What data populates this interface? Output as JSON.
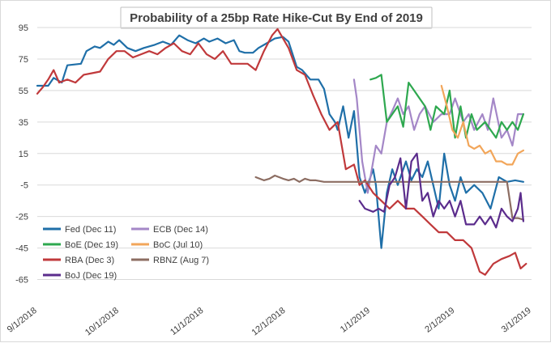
{
  "chart_data": {
    "type": "line",
    "title": "Probability  of a 25bp Rate Hike-Cut  By End of 2019",
    "xlabel": "",
    "ylabel": "",
    "ylim": [
      -75,
      95
    ],
    "yticks": [
      95,
      75,
      55,
      35,
      15,
      -5,
      -25,
      -45,
      -65
    ],
    "x_ticks": [
      "9/1/2018",
      "10/1/2018",
      "11/1/2018",
      "12/1/2018",
      "1/1/2019",
      "2/1/2019",
      "3/1/2019"
    ],
    "grid": "horizontal",
    "legend_position": "bottom-left",
    "x_start": "2018-09-01",
    "series": [
      {
        "name": "Fed (Dec 11)",
        "color": "#1f6fa8",
        "points": [
          [
            "2018-09-01",
            58
          ],
          [
            "2018-09-05",
            58
          ],
          [
            "2018-09-07",
            63
          ],
          [
            "2018-09-10",
            60
          ],
          [
            "2018-09-12",
            71
          ],
          [
            "2018-09-17",
            72
          ],
          [
            "2018-09-19",
            80
          ],
          [
            "2018-09-22",
            83
          ],
          [
            "2018-09-24",
            82
          ],
          [
            "2018-09-27",
            86
          ],
          [
            "2018-09-29",
            84
          ],
          [
            "2018-10-01",
            87
          ],
          [
            "2018-10-04",
            82
          ],
          [
            "2018-10-07",
            80
          ],
          [
            "2018-10-10",
            82
          ],
          [
            "2018-10-14",
            84
          ],
          [
            "2018-10-17",
            86
          ],
          [
            "2018-10-20",
            84
          ],
          [
            "2018-10-23",
            90
          ],
          [
            "2018-10-26",
            87
          ],
          [
            "2018-10-29",
            85
          ],
          [
            "2018-11-01",
            88
          ],
          [
            "2018-11-03",
            86
          ],
          [
            "2018-11-06",
            88
          ],
          [
            "2018-11-09",
            85
          ],
          [
            "2018-11-12",
            87
          ],
          [
            "2018-11-14",
            80
          ],
          [
            "2018-11-16",
            79
          ],
          [
            "2018-11-19",
            79
          ],
          [
            "2018-11-21",
            82
          ],
          [
            "2018-11-24",
            85
          ],
          [
            "2018-11-27",
            88
          ],
          [
            "2018-11-30",
            89
          ],
          [
            "2018-12-02",
            86
          ],
          [
            "2018-12-05",
            70
          ],
          [
            "2018-12-07",
            68
          ],
          [
            "2018-12-10",
            62
          ],
          [
            "2018-12-13",
            62
          ],
          [
            "2018-12-15",
            56
          ],
          [
            "2018-12-17",
            40
          ],
          [
            "2018-12-19",
            35
          ],
          [
            "2018-12-20",
            30
          ],
          [
            "2018-12-22",
            45
          ],
          [
            "2018-12-24",
            25
          ],
          [
            "2018-12-26",
            42
          ],
          [
            "2018-12-28",
            0
          ],
          [
            "2018-12-30",
            -10
          ],
          [
            "2019-01-02",
            5
          ],
          [
            "2019-01-03",
            -5
          ],
          [
            "2019-01-05",
            -45
          ],
          [
            "2019-01-07",
            -10
          ],
          [
            "2019-01-09",
            5
          ],
          [
            "2019-01-11",
            -5
          ],
          [
            "2019-01-14",
            10
          ],
          [
            "2019-01-16",
            -2
          ],
          [
            "2019-01-18",
            5
          ],
          [
            "2019-01-20",
            0
          ],
          [
            "2019-01-22",
            10
          ],
          [
            "2019-01-24",
            -5
          ],
          [
            "2019-01-26",
            -20
          ],
          [
            "2019-01-28",
            15
          ],
          [
            "2019-01-30",
            -5
          ],
          [
            "2019-02-01",
            -15
          ],
          [
            "2019-02-03",
            0
          ],
          [
            "2019-02-05",
            -10
          ],
          [
            "2019-02-08",
            -5
          ],
          [
            "2019-02-11",
            -10
          ],
          [
            "2019-02-14",
            -20
          ],
          [
            "2019-02-17",
            0
          ],
          [
            "2019-02-20",
            -3
          ],
          [
            "2019-02-23",
            -2
          ],
          [
            "2019-02-26",
            -3
          ]
        ]
      },
      {
        "name": "ECB (Dec 14)",
        "color": "#a487c7",
        "points": [
          [
            "2018-12-26",
            62
          ],
          [
            "2018-12-27",
            50
          ],
          [
            "2018-12-29",
            10
          ],
          [
            "2018-12-31",
            -10
          ],
          [
            "2019-01-03",
            20
          ],
          [
            "2019-01-05",
            15
          ],
          [
            "2019-01-07",
            35
          ],
          [
            "2019-01-09",
            42
          ],
          [
            "2019-01-11",
            50
          ],
          [
            "2019-01-13",
            40
          ],
          [
            "2019-01-15",
            45
          ],
          [
            "2019-01-17",
            30
          ],
          [
            "2019-01-19",
            40
          ],
          [
            "2019-01-21",
            45
          ],
          [
            "2019-01-24",
            35
          ],
          [
            "2019-01-27",
            40
          ],
          [
            "2019-01-30",
            40
          ],
          [
            "2019-02-01",
            50
          ],
          [
            "2019-02-04",
            35
          ],
          [
            "2019-02-06",
            40
          ],
          [
            "2019-02-08",
            30
          ],
          [
            "2019-02-11",
            40
          ],
          [
            "2019-02-13",
            30
          ],
          [
            "2019-02-15",
            50
          ],
          [
            "2019-02-18",
            25
          ],
          [
            "2019-02-20",
            30
          ],
          [
            "2019-02-22",
            20
          ],
          [
            "2019-02-24",
            40
          ],
          [
            "2019-02-26",
            40
          ]
        ]
      },
      {
        "name": "BoE (Dec 19)",
        "color": "#2ea84f",
        "points": [
          [
            "2019-01-01",
            62
          ],
          [
            "2019-01-03",
            63
          ],
          [
            "2019-01-05",
            65
          ],
          [
            "2019-01-07",
            35
          ],
          [
            "2019-01-09",
            40
          ],
          [
            "2019-01-11",
            45
          ],
          [
            "2019-01-13",
            32
          ],
          [
            "2019-01-15",
            60
          ],
          [
            "2019-01-17",
            55
          ],
          [
            "2019-01-19",
            50
          ],
          [
            "2019-01-21",
            45
          ],
          [
            "2019-01-23",
            30
          ],
          [
            "2019-01-25",
            45
          ],
          [
            "2019-01-28",
            40
          ],
          [
            "2019-01-30",
            55
          ],
          [
            "2019-02-01",
            25
          ],
          [
            "2019-02-03",
            45
          ],
          [
            "2019-02-05",
            25
          ],
          [
            "2019-02-07",
            40
          ],
          [
            "2019-02-09",
            30
          ],
          [
            "2019-02-12",
            35
          ],
          [
            "2019-02-14",
            30
          ],
          [
            "2019-02-16",
            25
          ],
          [
            "2019-02-18",
            35
          ],
          [
            "2019-02-20",
            30
          ],
          [
            "2019-02-22",
            35
          ],
          [
            "2019-02-24",
            30
          ],
          [
            "2019-02-26",
            40
          ]
        ]
      },
      {
        "name": "BoC (Jul 10)",
        "color": "#f2a65a",
        "points": [
          [
            "2019-01-27",
            58
          ],
          [
            "2019-01-29",
            45
          ],
          [
            "2019-01-31",
            30
          ],
          [
            "2019-02-02",
            25
          ],
          [
            "2019-02-04",
            35
          ],
          [
            "2019-02-06",
            20
          ],
          [
            "2019-02-08",
            18
          ],
          [
            "2019-02-10",
            20
          ],
          [
            "2019-02-12",
            15
          ],
          [
            "2019-02-14",
            17
          ],
          [
            "2019-02-16",
            10
          ],
          [
            "2019-02-18",
            10
          ],
          [
            "2019-02-20",
            8
          ],
          [
            "2019-02-22",
            8
          ],
          [
            "2019-02-24",
            15
          ],
          [
            "2019-02-26",
            17
          ]
        ]
      },
      {
        "name": "RBA (Dec 3)",
        "color": "#c0393b",
        "points": [
          [
            "2018-09-01",
            53
          ],
          [
            "2018-09-03",
            57
          ],
          [
            "2018-09-05",
            62
          ],
          [
            "2018-09-07",
            68
          ],
          [
            "2018-09-09",
            60
          ],
          [
            "2018-09-12",
            62
          ],
          [
            "2018-09-15",
            60
          ],
          [
            "2018-09-18",
            65
          ],
          [
            "2018-09-21",
            66
          ],
          [
            "2018-09-24",
            67
          ],
          [
            "2018-09-27",
            75
          ],
          [
            "2018-09-30",
            80
          ],
          [
            "2018-10-03",
            80
          ],
          [
            "2018-10-06",
            76
          ],
          [
            "2018-10-09",
            78
          ],
          [
            "2018-10-12",
            80
          ],
          [
            "2018-10-15",
            78
          ],
          [
            "2018-10-18",
            82
          ],
          [
            "2018-10-21",
            85
          ],
          [
            "2018-10-24",
            80
          ],
          [
            "2018-10-27",
            78
          ],
          [
            "2018-10-30",
            85
          ],
          [
            "2018-11-02",
            78
          ],
          [
            "2018-11-05",
            75
          ],
          [
            "2018-11-08",
            80
          ],
          [
            "2018-11-11",
            72
          ],
          [
            "2018-11-14",
            72
          ],
          [
            "2018-11-17",
            72
          ],
          [
            "2018-11-20",
            68
          ],
          [
            "2018-11-23",
            80
          ],
          [
            "2018-11-26",
            90
          ],
          [
            "2018-11-28",
            94
          ],
          [
            "2018-11-30",
            88
          ],
          [
            "2018-12-02",
            82
          ],
          [
            "2018-12-05",
            68
          ],
          [
            "2018-12-08",
            65
          ],
          [
            "2018-12-11",
            52
          ],
          [
            "2018-12-14",
            40
          ],
          [
            "2018-12-17",
            30
          ],
          [
            "2018-12-20",
            35
          ],
          [
            "2018-12-23",
            5
          ],
          [
            "2018-12-26",
            8
          ],
          [
            "2018-12-28",
            -5
          ],
          [
            "2018-12-30",
            -2
          ],
          [
            "2019-01-02",
            -10
          ],
          [
            "2019-01-05",
            -15
          ],
          [
            "2019-01-08",
            -20
          ],
          [
            "2019-01-11",
            -15
          ],
          [
            "2019-01-14",
            -20
          ],
          [
            "2019-01-17",
            -20
          ],
          [
            "2019-01-20",
            -25
          ],
          [
            "2019-01-23",
            -30
          ],
          [
            "2019-01-26",
            -35
          ],
          [
            "2019-01-29",
            -35
          ],
          [
            "2019-02-01",
            -40
          ],
          [
            "2019-02-04",
            -40
          ],
          [
            "2019-02-07",
            -45
          ],
          [
            "2019-02-10",
            -60
          ],
          [
            "2019-02-12",
            -62
          ],
          [
            "2019-02-15",
            -55
          ],
          [
            "2019-02-18",
            -52
          ],
          [
            "2019-02-21",
            -50
          ],
          [
            "2019-02-23",
            -48
          ],
          [
            "2019-02-25",
            -58
          ],
          [
            "2019-02-27",
            -55
          ]
        ]
      },
      {
        "name": "RBNZ (Aug 7)",
        "color": "#8c6d62",
        "points": [
          [
            "2018-11-20",
            0
          ],
          [
            "2018-11-23",
            -2
          ],
          [
            "2018-11-25",
            -1
          ],
          [
            "2018-11-27",
            1
          ],
          [
            "2018-11-30",
            -1
          ],
          [
            "2018-12-02",
            -2
          ],
          [
            "2018-12-04",
            -1
          ],
          [
            "2018-12-06",
            -3
          ],
          [
            "2018-12-08",
            -1
          ],
          [
            "2018-12-10",
            -2
          ],
          [
            "2018-12-12",
            -2
          ],
          [
            "2018-12-15",
            -3
          ],
          [
            "2018-12-18",
            -3
          ],
          [
            "2018-12-22",
            -3
          ],
          [
            "2018-12-26",
            -3
          ],
          [
            "2018-12-31",
            -3
          ],
          [
            "2019-01-05",
            -3
          ],
          [
            "2019-01-10",
            -3
          ],
          [
            "2019-01-15",
            -3
          ],
          [
            "2019-01-20",
            -3
          ],
          [
            "2019-01-25",
            -3
          ],
          [
            "2019-01-31",
            -3
          ],
          [
            "2019-02-05",
            -3
          ],
          [
            "2019-02-10",
            -3
          ],
          [
            "2019-02-15",
            -3
          ],
          [
            "2019-02-20",
            -3
          ],
          [
            "2019-02-22",
            -26
          ],
          [
            "2019-02-24",
            -26
          ],
          [
            "2019-02-26",
            -27
          ]
        ]
      },
      {
        "name": "BoJ (Dec 19)",
        "color": "#5b2c8c",
        "points": [
          [
            "2018-12-28",
            -15
          ],
          [
            "2018-12-30",
            -20
          ],
          [
            "2019-01-02",
            -22
          ],
          [
            "2019-01-04",
            -20
          ],
          [
            "2019-01-06",
            -22
          ],
          [
            "2019-01-08",
            -5
          ],
          [
            "2019-01-10",
            0
          ],
          [
            "2019-01-12",
            12
          ],
          [
            "2019-01-14",
            -20
          ],
          [
            "2019-01-16",
            10
          ],
          [
            "2019-01-18",
            15
          ],
          [
            "2019-01-20",
            -15
          ],
          [
            "2019-01-22",
            -10
          ],
          [
            "2019-01-24",
            -25
          ],
          [
            "2019-01-26",
            -15
          ],
          [
            "2019-01-28",
            -20
          ],
          [
            "2019-01-30",
            -15
          ],
          [
            "2019-02-01",
            -25
          ],
          [
            "2019-02-03",
            -15
          ],
          [
            "2019-02-05",
            -30
          ],
          [
            "2019-02-08",
            -30
          ],
          [
            "2019-02-10",
            -25
          ],
          [
            "2019-02-12",
            -30
          ],
          [
            "2019-02-14",
            -25
          ],
          [
            "2019-02-16",
            -32
          ],
          [
            "2019-02-18",
            -20
          ],
          [
            "2019-02-20",
            -25
          ],
          [
            "2019-02-22",
            -28
          ],
          [
            "2019-02-24",
            -20
          ],
          [
            "2019-02-25",
            -10
          ],
          [
            "2019-02-26",
            -28
          ]
        ]
      }
    ]
  }
}
